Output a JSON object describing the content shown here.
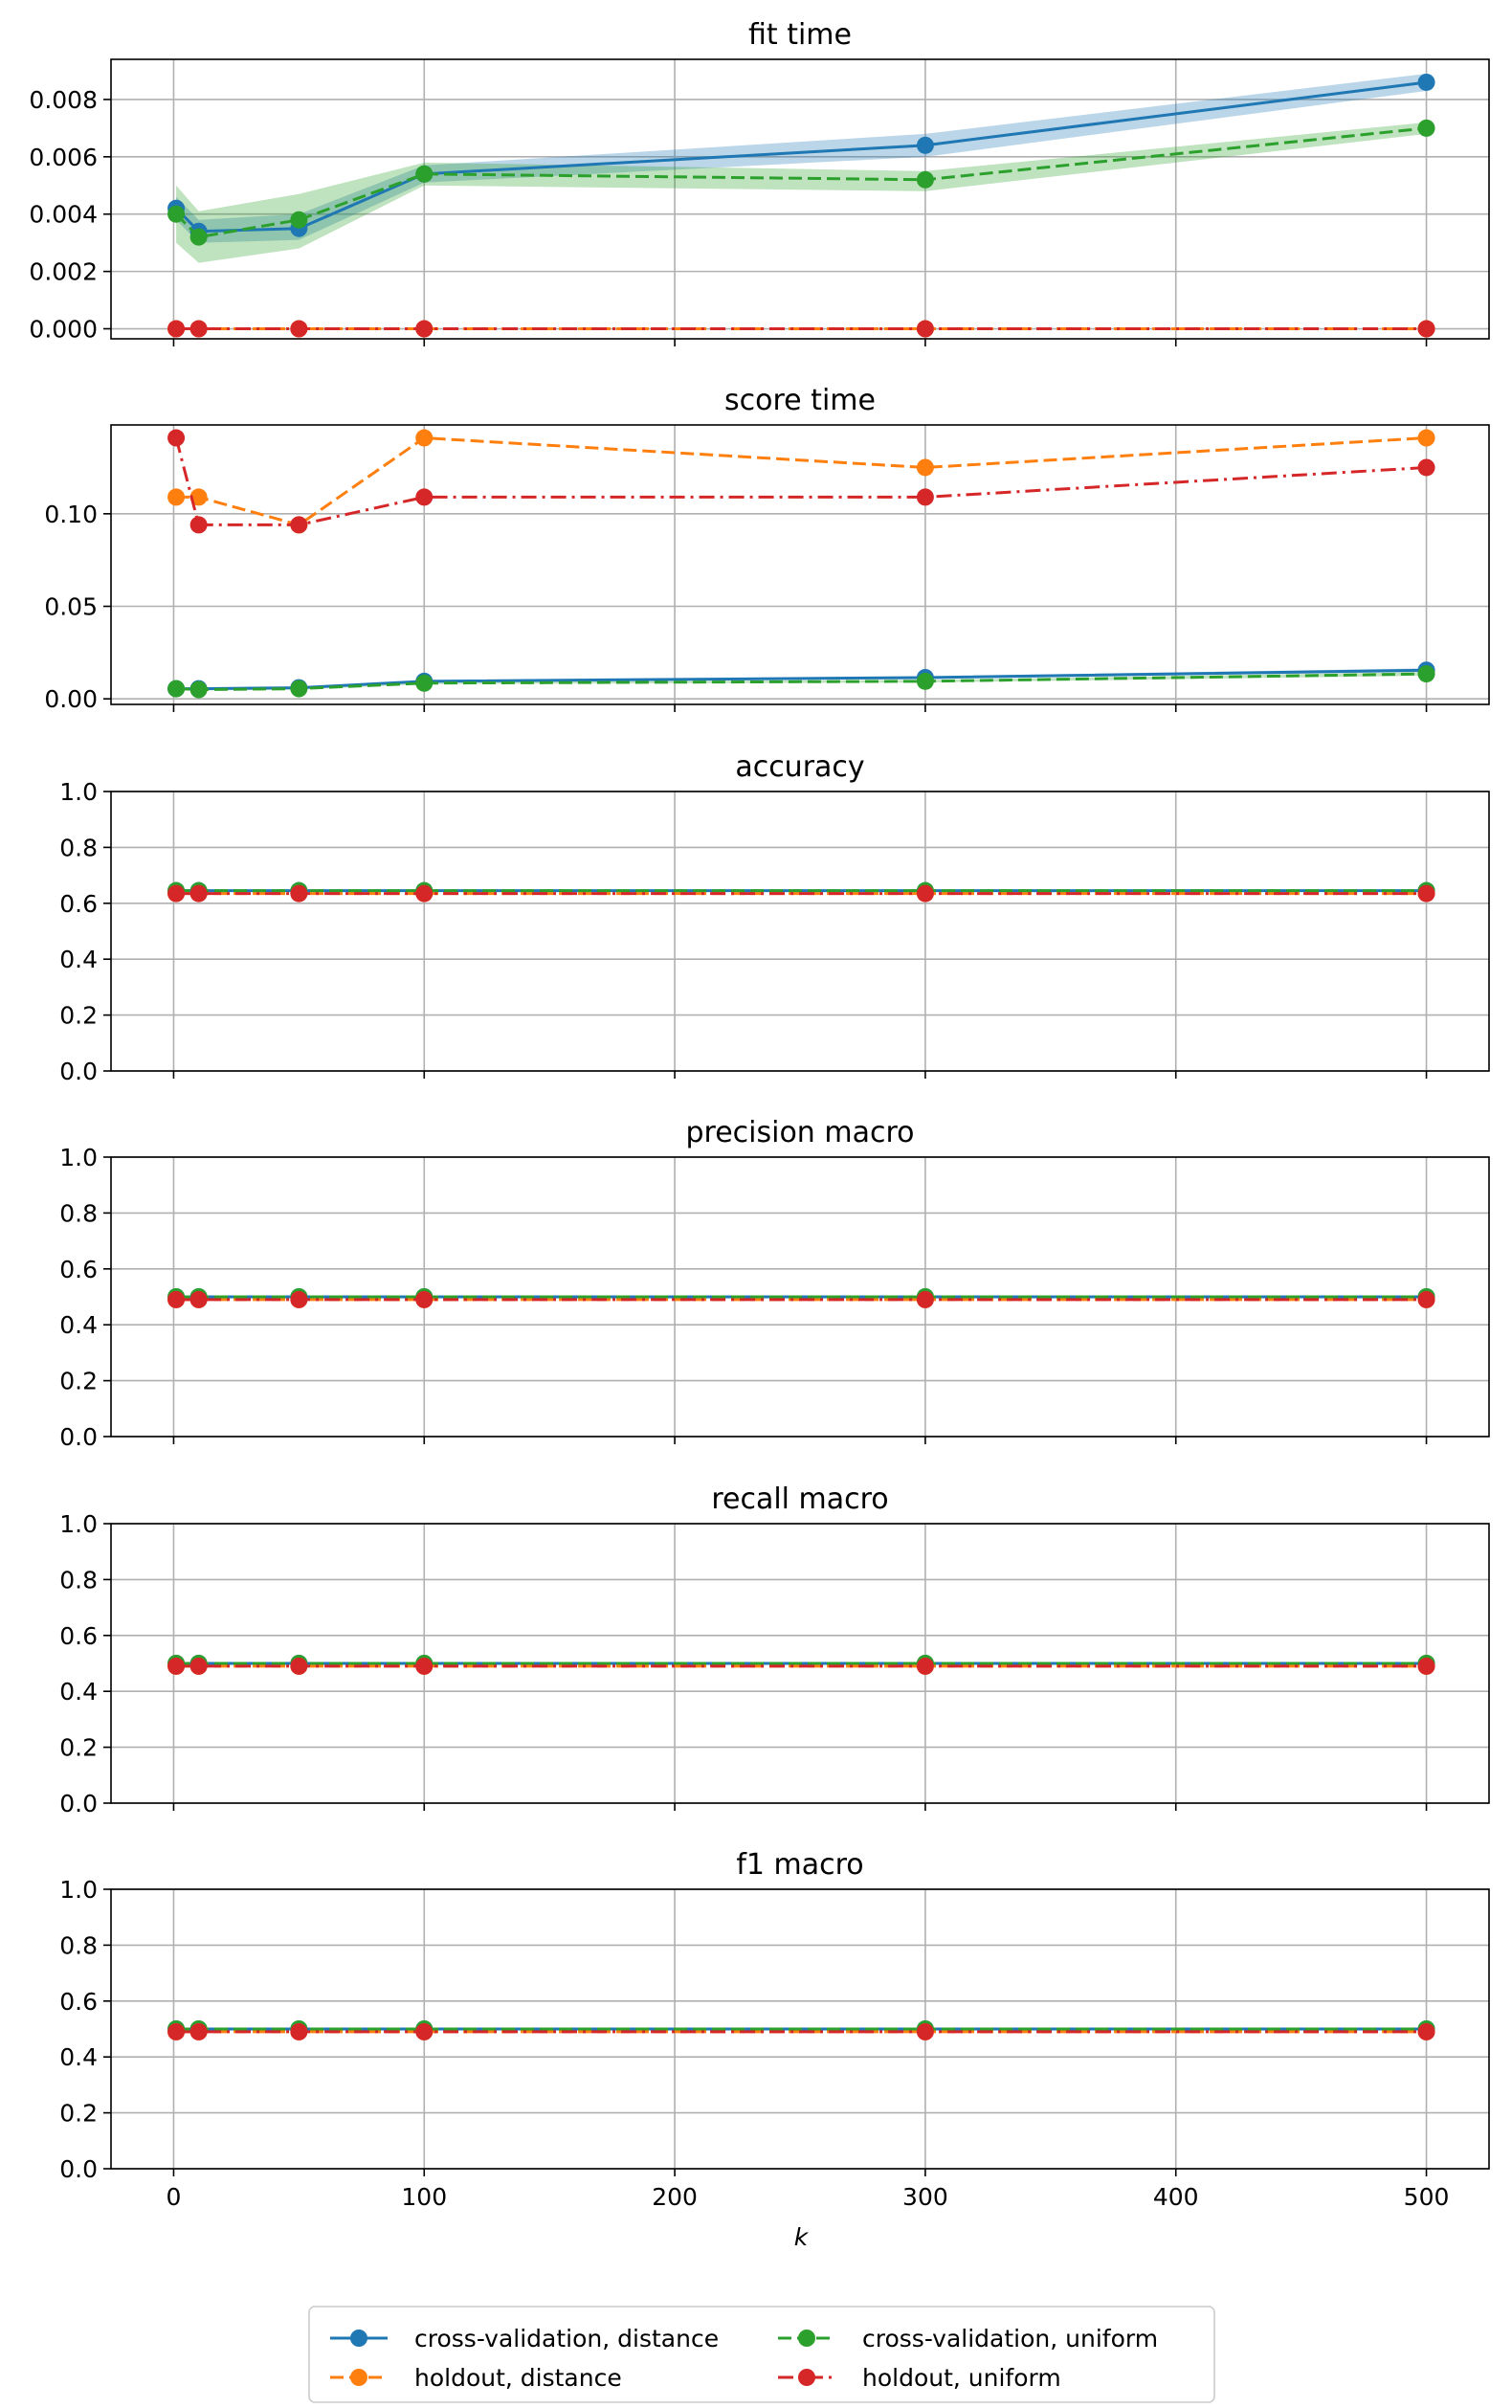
{
  "figure": {
    "xlabel": "k",
    "xticks": [
      0,
      100,
      200,
      300,
      400,
      500
    ],
    "xlim": [
      -25,
      525
    ]
  },
  "legend": {
    "placement": "bottom-center",
    "columns": 2,
    "items": [
      {
        "label": "cross-validation, distance",
        "color": "#1f77b4",
        "dash": "solid"
      },
      {
        "label": "holdout, distance",
        "color": "#ff7f0e",
        "dash": "dashed"
      },
      {
        "label": "cross-validation, uniform",
        "color": "#2ca02c",
        "dash": "dashed"
      },
      {
        "label": "holdout, uniform",
        "color": "#d62728",
        "dash": "dashdot"
      }
    ]
  },
  "chart_data": [
    {
      "type": "line",
      "title": "fit time",
      "x": [
        1,
        10,
        50,
        100,
        300,
        500
      ],
      "ylim": [
        -0.00035,
        0.0094
      ],
      "yticks": [
        0.0,
        0.002,
        0.004,
        0.006,
        0.008
      ],
      "ytick_labels": [
        "0.000",
        "0.002",
        "0.004",
        "0.006",
        "0.008"
      ],
      "grid": true,
      "series": [
        {
          "name": "cross-validation, distance",
          "color": "#1f77b4",
          "dash": "solid",
          "values": [
            0.0042,
            0.0034,
            0.0035,
            0.0054,
            0.0064,
            0.0086
          ],
          "band": {
            "low": [
              0.0038,
              0.003,
              0.0031,
              0.0051,
              0.006,
              0.0083
            ],
            "high": [
              0.0046,
              0.0038,
              0.004,
              0.0057,
              0.0068,
              0.0089
            ]
          }
        },
        {
          "name": "holdout, distance",
          "color": "#ff7f0e",
          "dash": "dashed",
          "values": [
            0.0,
            0.0,
            0.0,
            0.0,
            0.0,
            0.0
          ]
        },
        {
          "name": "cross-validation, uniform",
          "color": "#2ca02c",
          "dash": "dashed",
          "values": [
            0.004,
            0.0032,
            0.0038,
            0.0054,
            0.0052,
            0.007
          ],
          "band": {
            "low": [
              0.003,
              0.0023,
              0.0028,
              0.005,
              0.0048,
              0.0068
            ],
            "high": [
              0.005,
              0.0041,
              0.0047,
              0.0058,
              0.0055,
              0.0072
            ]
          }
        },
        {
          "name": "holdout, uniform",
          "color": "#d62728",
          "dash": "dashdot",
          "values": [
            0.0,
            0.0,
            0.0,
            0.0,
            0.0,
            0.0
          ]
        }
      ]
    },
    {
      "type": "line",
      "title": "score time",
      "x": [
        1,
        10,
        50,
        100,
        300,
        500
      ],
      "ylim": [
        -0.003,
        0.148
      ],
      "yticks": [
        0.0,
        0.05,
        0.1
      ],
      "ytick_labels": [
        "0.00",
        "0.05",
        "0.10"
      ],
      "grid": true,
      "series": [
        {
          "name": "cross-validation, distance",
          "color": "#1f77b4",
          "dash": "solid",
          "values": [
            0.0055,
            0.0055,
            0.006,
            0.0095,
            0.0115,
            0.0155
          ],
          "band": {
            "low": [
              0.005,
              0.005,
              0.0055,
              0.009,
              0.0108,
              0.0145
            ],
            "high": [
              0.006,
              0.006,
              0.0065,
              0.01,
              0.0122,
              0.0165
            ]
          }
        },
        {
          "name": "holdout, distance",
          "color": "#ff7f0e",
          "dash": "dashed",
          "values": [
            0.109,
            0.109,
            0.094,
            0.141,
            0.125,
            0.141
          ]
        },
        {
          "name": "cross-validation, uniform",
          "color": "#2ca02c",
          "dash": "dashed",
          "values": [
            0.0055,
            0.005,
            0.0055,
            0.0085,
            0.0095,
            0.0135
          ],
          "band": {
            "low": [
              0.005,
              0.0045,
              0.005,
              0.008,
              0.0088,
              0.0125
            ],
            "high": [
              0.006,
              0.0055,
              0.006,
              0.009,
              0.0102,
              0.0145
            ]
          }
        },
        {
          "name": "holdout, uniform",
          "color": "#d62728",
          "dash": "dashdot",
          "values": [
            0.141,
            0.094,
            0.094,
            0.109,
            0.109,
            0.125
          ]
        }
      ]
    },
    {
      "type": "line",
      "title": "accuracy",
      "x": [
        1,
        10,
        50,
        100,
        300,
        500
      ],
      "ylim": [
        0,
        1
      ],
      "yticks": [
        0.0,
        0.2,
        0.4,
        0.6,
        0.8,
        1.0
      ],
      "ytick_labels": [
        "0.0",
        "0.2",
        "0.4",
        "0.6",
        "0.8",
        "1.0"
      ],
      "grid": true,
      "series": [
        {
          "name": "cross-validation, distance",
          "color": "#1f77b4",
          "dash": "solid",
          "values": [
            0.645,
            0.645,
            0.645,
            0.645,
            0.645,
            0.645
          ]
        },
        {
          "name": "holdout, distance",
          "color": "#ff7f0e",
          "dash": "dashed",
          "values": [
            0.635,
            0.635,
            0.635,
            0.635,
            0.635,
            0.635
          ]
        },
        {
          "name": "cross-validation, uniform",
          "color": "#2ca02c",
          "dash": "dashed",
          "values": [
            0.645,
            0.645,
            0.645,
            0.645,
            0.645,
            0.645
          ]
        },
        {
          "name": "holdout, uniform",
          "color": "#d62728",
          "dash": "dashdot",
          "values": [
            0.635,
            0.635,
            0.635,
            0.635,
            0.635,
            0.635
          ]
        }
      ]
    },
    {
      "type": "line",
      "title": "precision macro",
      "x": [
        1,
        10,
        50,
        100,
        300,
        500
      ],
      "ylim": [
        0,
        1
      ],
      "yticks": [
        0.0,
        0.2,
        0.4,
        0.6,
        0.8,
        1.0
      ],
      "ytick_labels": [
        "0.0",
        "0.2",
        "0.4",
        "0.6",
        "0.8",
        "1.0"
      ],
      "grid": true,
      "series": [
        {
          "name": "cross-validation, distance",
          "color": "#1f77b4",
          "dash": "solid",
          "values": [
            0.5,
            0.5,
            0.5,
            0.5,
            0.5,
            0.5
          ]
        },
        {
          "name": "holdout, distance",
          "color": "#ff7f0e",
          "dash": "dashed",
          "values": [
            0.49,
            0.49,
            0.49,
            0.49,
            0.49,
            0.49
          ]
        },
        {
          "name": "cross-validation, uniform",
          "color": "#2ca02c",
          "dash": "dashed",
          "values": [
            0.5,
            0.5,
            0.5,
            0.5,
            0.5,
            0.5
          ]
        },
        {
          "name": "holdout, uniform",
          "color": "#d62728",
          "dash": "dashdot",
          "values": [
            0.49,
            0.49,
            0.49,
            0.49,
            0.49,
            0.49
          ]
        }
      ]
    },
    {
      "type": "line",
      "title": "recall macro",
      "x": [
        1,
        10,
        50,
        100,
        300,
        500
      ],
      "ylim": [
        0,
        1
      ],
      "yticks": [
        0.0,
        0.2,
        0.4,
        0.6,
        0.8,
        1.0
      ],
      "ytick_labels": [
        "0.0",
        "0.2",
        "0.4",
        "0.6",
        "0.8",
        "1.0"
      ],
      "grid": true,
      "series": [
        {
          "name": "cross-validation, distance",
          "color": "#1f77b4",
          "dash": "solid",
          "values": [
            0.5,
            0.5,
            0.5,
            0.5,
            0.5,
            0.5
          ]
        },
        {
          "name": "holdout, distance",
          "color": "#ff7f0e",
          "dash": "dashed",
          "values": [
            0.49,
            0.49,
            0.49,
            0.49,
            0.49,
            0.49
          ]
        },
        {
          "name": "cross-validation, uniform",
          "color": "#2ca02c",
          "dash": "dashed",
          "values": [
            0.5,
            0.5,
            0.5,
            0.5,
            0.5,
            0.5
          ]
        },
        {
          "name": "holdout, uniform",
          "color": "#d62728",
          "dash": "dashdot",
          "values": [
            0.49,
            0.49,
            0.49,
            0.49,
            0.49,
            0.49
          ]
        }
      ]
    },
    {
      "type": "line",
      "title": "f1 macro",
      "x": [
        1,
        10,
        50,
        100,
        300,
        500
      ],
      "ylim": [
        0,
        1
      ],
      "yticks": [
        0.0,
        0.2,
        0.4,
        0.6,
        0.8,
        1.0
      ],
      "ytick_labels": [
        "0.0",
        "0.2",
        "0.4",
        "0.6",
        "0.8",
        "1.0"
      ],
      "grid": true,
      "series": [
        {
          "name": "cross-validation, distance",
          "color": "#1f77b4",
          "dash": "solid",
          "values": [
            0.5,
            0.5,
            0.5,
            0.5,
            0.5,
            0.5
          ]
        },
        {
          "name": "holdout, distance",
          "color": "#ff7f0e",
          "dash": "dashed",
          "values": [
            0.49,
            0.49,
            0.49,
            0.49,
            0.49,
            0.49
          ]
        },
        {
          "name": "cross-validation, uniform",
          "color": "#2ca02c",
          "dash": "dashed",
          "values": [
            0.5,
            0.5,
            0.5,
            0.5,
            0.5,
            0.5
          ]
        },
        {
          "name": "holdout, uniform",
          "color": "#d62728",
          "dash": "dashdot",
          "values": [
            0.49,
            0.49,
            0.49,
            0.49,
            0.49,
            0.49
          ]
        }
      ]
    }
  ]
}
